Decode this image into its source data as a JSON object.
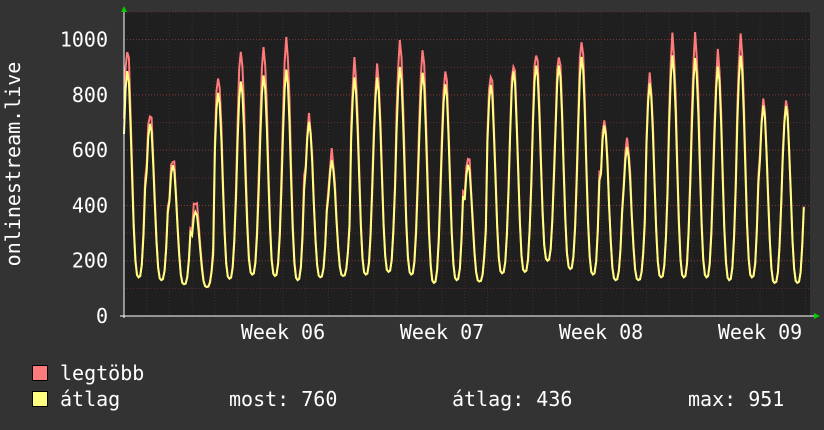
{
  "chart_data": {
    "type": "line",
    "ylabel": "onlinestream.live",
    "ylim": [
      0,
      1100
    ],
    "yticks": [
      0,
      200,
      400,
      600,
      800,
      1000
    ],
    "x_tick_labels": [
      "Week 06",
      "Week 07",
      "Week 08",
      "Week 09"
    ],
    "x_tick_days": [
      7,
      14,
      21,
      28
    ],
    "x_range_days": [
      0,
      30.2
    ],
    "grid": true,
    "legend_placement": "bottom-left",
    "daily_peaks_max": [
      970,
      740,
      575,
      420,
      870,
      960,
      970,
      1000,
      720,
      590,
      920,
      900,
      990,
      960,
      890,
      580,
      880,
      920,
      960,
      950,
      1000,
      710,
      640,
      870,
      1010,
      1010,
      950,
      1010,
      780
    ],
    "daily_peaks_avg": [
      890,
      700,
      550,
      380,
      810,
      850,
      870,
      890,
      700,
      560,
      860,
      860,
      900,
      880,
      840,
      550,
      840,
      890,
      910,
      910,
      940,
      690,
      610,
      840,
      940,
      930,
      900,
      940,
      760
    ],
    "daily_troughs": [
      140,
      130,
      115,
      105,
      135,
      150,
      145,
      130,
      140,
      145,
      150,
      160,
      150,
      120,
      130,
      125,
      155,
      160,
      200,
      170,
      150,
      130,
      130,
      140,
      140,
      140,
      130,
      140,
      120
    ],
    "series": [
      {
        "name": "legtöbb",
        "color": "#ff7a7a"
      },
      {
        "name": "átlag",
        "color": "#ffff80"
      }
    ]
  },
  "legend": {
    "max_label": "legtöbb",
    "avg_label": "átlag",
    "now_text": "most: 760",
    "average_text": "átlag: 436",
    "max_text": "max: 951"
  }
}
